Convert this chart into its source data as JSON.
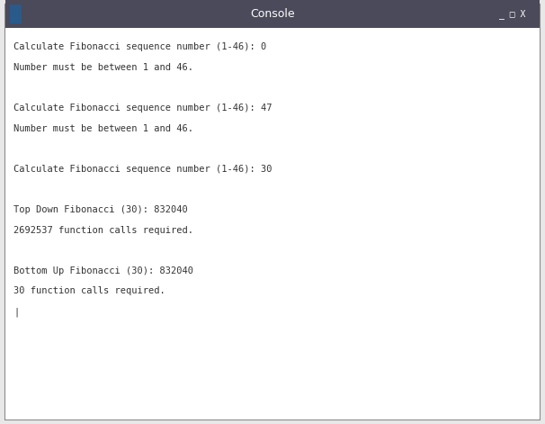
{
  "title": "Console",
  "title_bar_color": "#4a4a5a",
  "title_text_color": "#ffffff",
  "window_bg_color": "#e8e8e8",
  "content_bg_color": "#ffffff",
  "text_color": "#333333",
  "border_color": "#888888",
  "console_lines": [
    "Calculate Fibonacci sequence number (1-46): 0",
    "Number must be between 1 and 46.",
    "",
    "Calculate Fibonacci sequence number (1-46): 47",
    "Number must be between 1 and 46.",
    "",
    "Calculate Fibonacci sequence number (1-46): 30",
    "",
    "Top Down Fibonacci (30): 832040",
    "2692537 function calls required.",
    "",
    "Bottom Up Fibonacci (30): 832040",
    "30 function calls required.",
    "|"
  ],
  "font_size": 7.5,
  "font_family": "monospace",
  "fig_width": 6.06,
  "fig_height": 4.71,
  "dpi": 100
}
